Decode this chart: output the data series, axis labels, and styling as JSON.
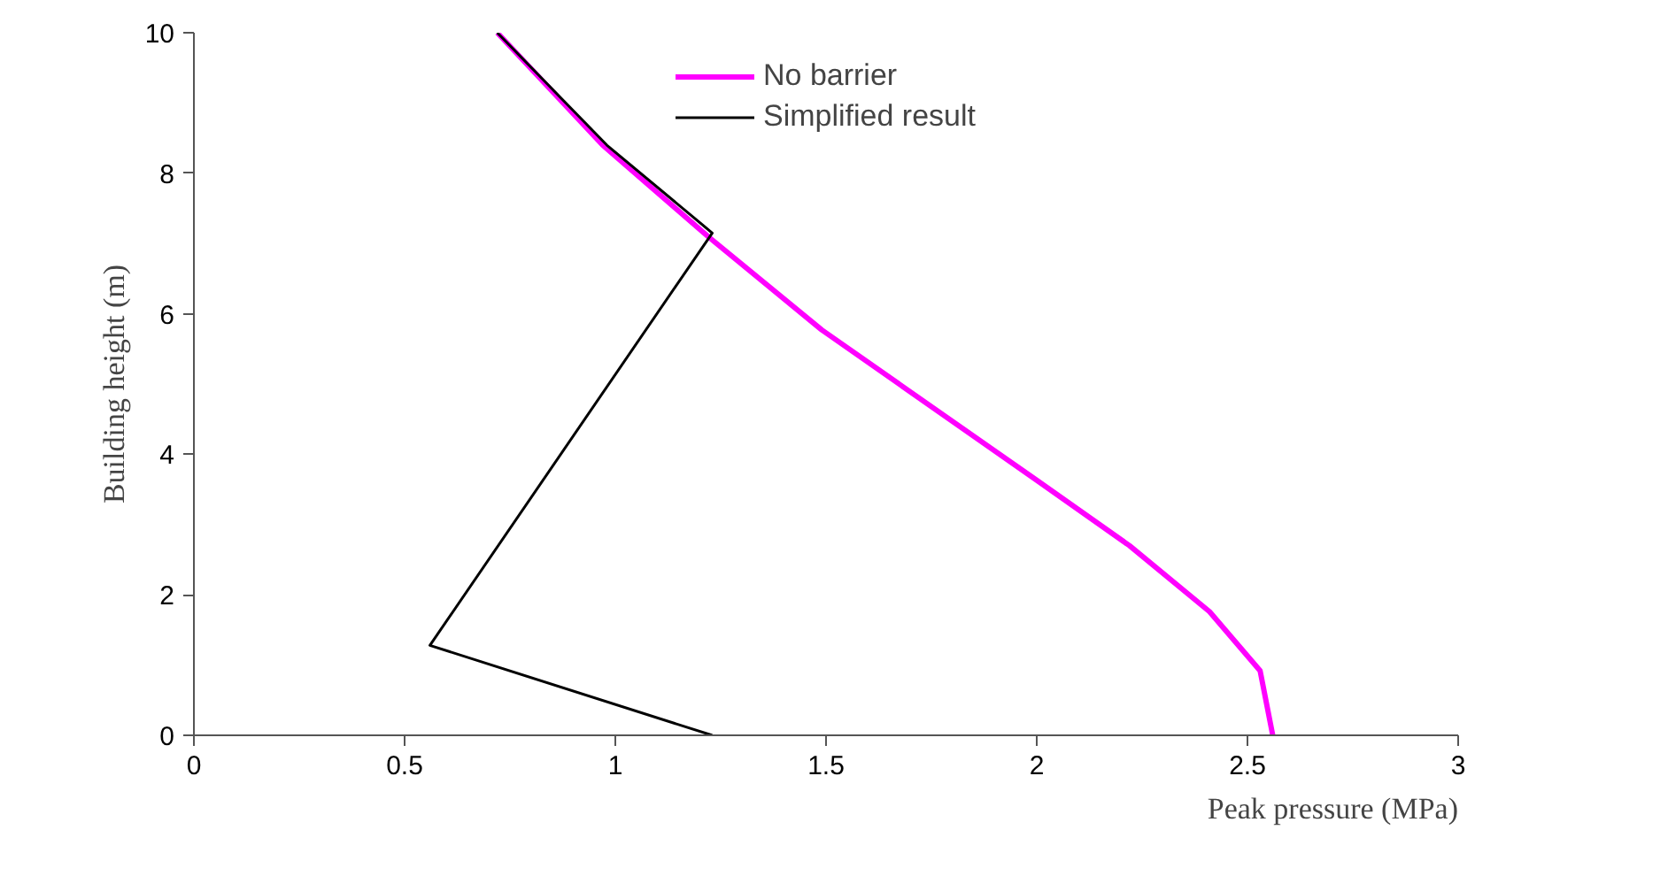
{
  "chart_data": {
    "type": "line",
    "xlabel": "Peak pressure (MPa)",
    "ylabel": "Building height (m)",
    "xlim": [
      0,
      3
    ],
    "xticks": [
      0,
      0.5,
      1,
      1.5,
      2,
      2.5,
      3
    ],
    "ylim": [
      0,
      10
    ],
    "yticks": [
      0,
      2,
      4,
      6,
      8,
      10
    ],
    "grid": false,
    "legend": "top",
    "marker": "none",
    "line_style": "solid",
    "series": [
      {
        "name": "No barrier",
        "color": "#ff00ff",
        "x": [
          0.72,
          0.97,
          1.22,
          1.49,
          2.0,
          2.22,
          2.41,
          2.53,
          2.56
        ],
        "values": [
          10,
          8.4,
          7.1,
          5.77,
          3.63,
          2.7,
          1.76,
          0.92,
          0
        ]
      },
      {
        "name": "Simplified result",
        "color": "#000000",
        "x": [
          0.72,
          0.98,
          1.23,
          0.56,
          1.23
        ],
        "values": [
          10,
          8.4,
          7.15,
          1.28,
          0
        ]
      }
    ]
  }
}
